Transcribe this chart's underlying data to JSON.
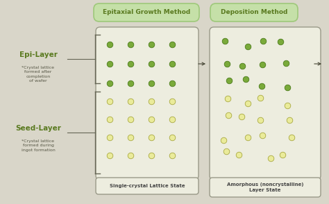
{
  "bg_color": "#d9d6c9",
  "title_bg_color": "#c5e0a8",
  "title_border_color": "#9ec87a",
  "green_dot_fill": "#7aaa3a",
  "green_dot_edge": "#4a7a1a",
  "yellow_dot_fill": "#eaeb9a",
  "yellow_dot_edge": "#a8a840",
  "box_fc": "#ededdf",
  "box_ec": "#999988",
  "text_green": "#5a7a20",
  "text_dark": "#444444",
  "title1": "Epitaxial Growth Method",
  "title2": "Deposition Method",
  "label1": "Single-crystal Lattice State",
  "label2": "Amorphous (noncrystalline)\nLayer State",
  "epi_label": "Epi-Layer",
  "epi_sub": "*Crystal lattice\nformed after\ncompletion\nof wafer",
  "seed_label": "Seed-Layer",
  "seed_sub": "*Crystal lattice\nformed during\ningot formation"
}
